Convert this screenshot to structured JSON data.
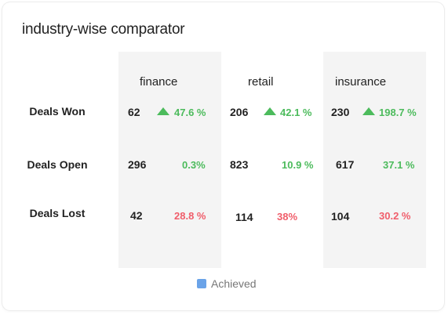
{
  "title": "industry-wise comparator",
  "columns": [
    "finance",
    "retail",
    "insurance"
  ],
  "rows": [
    {
      "label": "Deals Won",
      "cells": [
        {
          "value": "62",
          "pct": "47.6 %",
          "trend": "up"
        },
        {
          "value": "206",
          "pct": "42.1 %",
          "trend": "up"
        },
        {
          "value": "230",
          "pct": "198.7 %",
          "trend": "up"
        }
      ]
    },
    {
      "label": "Deals Open",
      "cells": [
        {
          "value": "296",
          "pct": "0.3%",
          "trend": "neutral"
        },
        {
          "value": "823",
          "pct": "10.9 %",
          "trend": "neutral"
        },
        {
          "value": "617",
          "pct": "37.1 %",
          "trend": "neutral"
        }
      ]
    },
    {
      "label": "Deals Lost",
      "cells": [
        {
          "value": "42",
          "pct": "28.8 %",
          "trend": "down"
        },
        {
          "value": "114",
          "pct": "38%",
          "trend": "down"
        },
        {
          "value": "104",
          "pct": "30.2 %",
          "trend": "down"
        }
      ]
    }
  ],
  "legend": {
    "label": "Achieved",
    "color": "#6aa3e8"
  },
  "colors": {
    "positive": "#4cbb5c",
    "negative": "#f05d6a",
    "column_shade": "#f4f4f4"
  },
  "icons": {
    "trend_up": "triangle-up-icon"
  }
}
